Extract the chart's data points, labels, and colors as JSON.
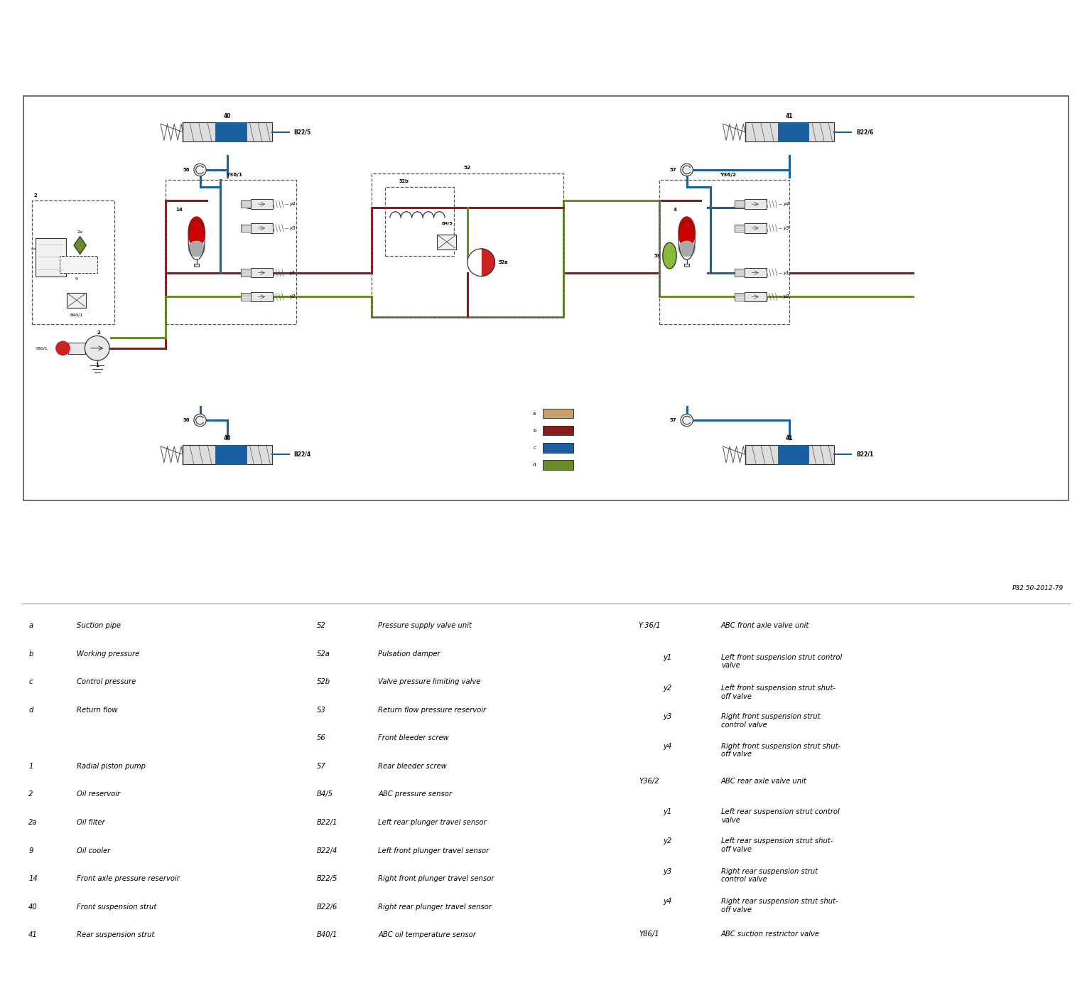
{
  "bg_color": "#ffffff",
  "line_colors": {
    "a": "#c8a06e",
    "b": "#8b1a1a",
    "c": "#1a5fa0",
    "d": "#6b8c2a"
  },
  "part_ref": "P32.50-2012-79",
  "legend_items_col1": [
    [
      "a",
      "Suction pipe"
    ],
    [
      "b",
      "Working pressure"
    ],
    [
      "c",
      "Control pressure"
    ],
    [
      "d",
      "Return flow"
    ],
    [
      "",
      ""
    ],
    [
      "1",
      "Radial piston pump"
    ],
    [
      "2",
      "Oil reservoir"
    ],
    [
      "2a",
      "Oil filter"
    ],
    [
      "9",
      "Oil cooler"
    ],
    [
      "14",
      "Front axle pressure reservoir"
    ],
    [
      "40",
      "Front suspension strut"
    ],
    [
      "41",
      "Rear suspension strut"
    ]
  ],
  "legend_items_col2": [
    [
      "52",
      "Pressure supply valve unit"
    ],
    [
      "52a",
      "Pulsation damper"
    ],
    [
      "52b",
      "Valve pressure limiting valve"
    ],
    [
      "53",
      "Return flow pressure reservoir"
    ],
    [
      "56",
      "Front bleeder screw"
    ],
    [
      "57",
      "Rear bleeder screw"
    ],
    [
      "B4/5",
      "ABC pressure sensor"
    ],
    [
      "B22/1",
      "Left rear plunger travel sensor"
    ],
    [
      "B22/4",
      "Left front plunger travel sensor"
    ],
    [
      "B22/5",
      "Right front plunger travel sensor"
    ],
    [
      "B22/6",
      "Right rear plunger travel sensor"
    ],
    [
      "B40/1",
      "ABC oil temperature sensor"
    ]
  ],
  "legend_items_col3": [
    [
      "Y 36/1",
      "ABC front axle valve unit"
    ],
    [
      "y1",
      "Left front suspension strut control\nvalve"
    ],
    [
      "y2",
      "Left front suspension strut shut-\noff valve"
    ],
    [
      "y3",
      "Right front suspension strut\ncontrol valve"
    ],
    [
      "y4",
      "Right front suspension strut shut-\noff valve"
    ],
    [
      "Y36/2",
      "ABC rear axle valve unit"
    ],
    [
      "y1",
      "Left rear suspension strut control\nvalve"
    ],
    [
      "y2",
      "Left rear suspension strut shut-\noff valve"
    ],
    [
      "y3",
      "Right rear suspension strut\ncontrol valve"
    ],
    [
      "y4",
      "Right rear suspension strut shut-\noff valve"
    ],
    [
      "Y86/1",
      "ABC suction restrictor valve"
    ]
  ]
}
